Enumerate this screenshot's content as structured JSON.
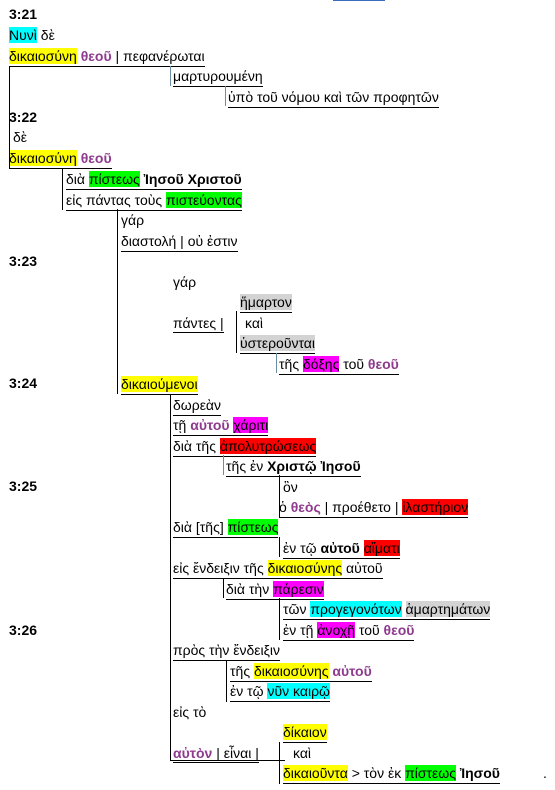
{
  "verses": {
    "v21": "3:21",
    "v22": "3:22",
    "v23": "3:23",
    "v24": "3:24",
    "v25": "3:25",
    "v26": "3:26"
  },
  "t": {
    "l1": "Νυνὶ",
    "l1b": " δὲ",
    "l2a": "δικαιοσύνη",
    "l2b": "θεοῦ",
    "l2c": " | πεφανέρωται",
    "l3": "μαρτυρουμένη",
    "l4": "ὑπὸ τοῦ νόμου καὶ τῶν προφητῶν",
    "l5": "δὲ",
    "l6a": "δικαιοσύνη",
    "l6b": "θεοῦ",
    "l7a": "διὰ ",
    "l7b": "πίστεως",
    "l7c": " Ἰησοῦ Χριστοῦ",
    "l8a": "εἰς πάντας τοὺς ",
    "l8b": "πιστεύοντας",
    "l9": "γάρ",
    "l10": "διαστολή | οὐ ἐστιν",
    "l11": "γάρ",
    "l12": "ἥμαρτον",
    "l13a": "πάντες |",
    "l13b": "καὶ",
    "l14": "ὑστεροῦνται",
    "l15a": "τῆς ",
    "l15b": "δόξης",
    "l15c": " τοῦ ",
    "l15d": "θεοῦ",
    "l16": "δικαιούμενοι",
    "l17": "δωρεὰν",
    "l18a": "τῇ ",
    "l18b": "αὐτοῦ",
    "l18c": " ",
    "l18d": "χάριτι",
    "l19a": "διὰ τῆς ",
    "l19b": "ἀπολυτρώσεως",
    "l20a": "τῆς ἐν ",
    "l20b": "Χριστῷ Ἰησοῦ",
    "l21": "ὃν",
    "l22a": "ὁ ",
    "l22b": "θεὸς",
    "l22c": " | προέθετο | ",
    "l22d": "ἱλαστήριον",
    "l23a": "διὰ [τῆς] ",
    "l23b": "πίστεως",
    "l24a": "ἐν τῷ ",
    "l24b": "αὐτοῦ",
    "l24c": " ",
    "l24d": "αἵματι",
    "l25a": "εἰς ἔνδειξιν τῆς ",
    "l25b": "δικαιοσύνης",
    "l25c": " αὐτοῦ",
    "l26a": "διὰ τὴν ",
    "l26b": "πάρεσιν",
    "l27a": "τῶν ",
    "l27b": "προγεγονότων",
    "l27c": " ",
    "l27d": "ἁμαρτημάτων",
    "l28a": "ἐν τῇ ",
    "l28b": "ἀνοχῇ",
    "l28c": " τοῦ ",
    "l28d": "θεοῦ",
    "l29": "πρὸς τὴν ἔνδειξιν",
    "l30a": "τῆς ",
    "l30b": "δικαιοσύνης",
    "l30c": " ",
    "l30d": "αὐτοῦ",
    "l31a": "ἐν τῷ ",
    "l31b": "νῦν καιρῷ",
    "l32": "εἰς τὸ",
    "l33": "δίκαιον",
    "l34a": "αὐτὸν",
    "l34b": " | εἶναι |",
    "l34c": "καὶ",
    "l35a": "δικαιοῦντα",
    "l35b": " > τὸν ἐκ ",
    "l35c": "πίστεως",
    "l35d": " Ἰησοῦ",
    "l35e": "."
  },
  "colors": {
    "yellow": "#ffff00",
    "cyan": "#00ffff",
    "green": "#00ff00",
    "magenta": "#ff00ff",
    "red": "#ff0000",
    "gray": "#d3d3d3",
    "purple": "#8e3a8e"
  }
}
